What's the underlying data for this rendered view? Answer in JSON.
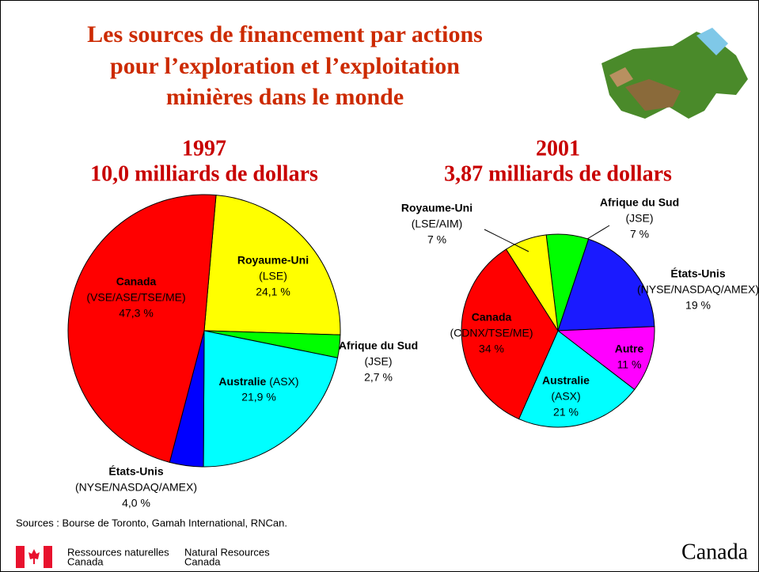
{
  "title_lines": [
    "Les sources de financement par actions",
    "pour l’exploration et l’exploitation",
    "minières dans le monde"
  ],
  "chart_data": [
    {
      "type": "pie",
      "title": "1997",
      "subtitle": "10,0 milliards de dollars",
      "categories": [
        "Royaume-Uni",
        "Afrique du Sud",
        "Australie",
        "États-Unis",
        "Canada"
      ],
      "exchanges": [
        "(LSE)",
        "(JSE)",
        "(ASX)",
        "(NYSE/NASDAQ/AMEX)",
        "(VSE/ASE/TSE/ME)"
      ],
      "values": [
        24.1,
        2.7,
        21.9,
        4.0,
        47.3
      ],
      "value_labels": [
        "24,1 %",
        "2,7 %",
        "21,9 %",
        "4,0 %",
        "47,3 %"
      ],
      "colors": [
        "#ffff00",
        "#00ff00",
        "#00ffff",
        "#0000ff",
        "#ff0000"
      ]
    },
    {
      "type": "pie",
      "title": "2001",
      "subtitle": "3,87 milliards de dollars",
      "categories": [
        "Afrique du Sud",
        "États-Unis",
        "Autre",
        "Australie",
        "Canada",
        "Royaume-Uni"
      ],
      "exchanges": [
        "(JSE)",
        "(NYSE/NASDAQ/AMEX)",
        null,
        "(ASX)",
        "(CDNX/TSE/ME)",
        "(LSE/AIM)"
      ],
      "values": [
        7,
        19,
        11,
        21,
        34,
        7
      ],
      "value_labels": [
        "7 %",
        "19 %",
        "11 %",
        "21 %",
        "34 %",
        "7 %"
      ],
      "colors": [
        "#00ff00",
        "#1a1aff",
        "#ff00ff",
        "#00ffff",
        "#ff0000",
        "#ffff00"
      ]
    }
  ],
  "source": "Sources : Bourse de Toronto, Gamah International, RNCan.",
  "footer": {
    "fr": [
      "Ressources naturelles",
      "Canada"
    ],
    "en": [
      "Natural Resources",
      "Canada"
    ],
    "wordmark": "Canada"
  }
}
